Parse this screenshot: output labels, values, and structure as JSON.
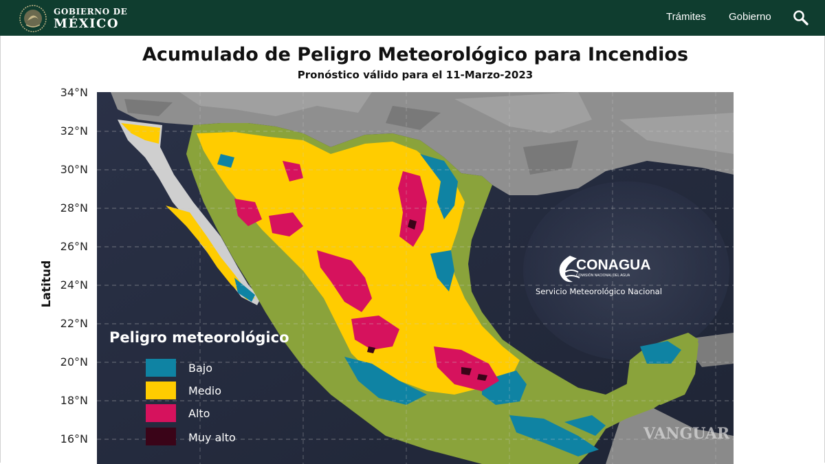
{
  "header": {
    "brand_line1": "GOBIERNO DE",
    "brand_line2": "MÉXICO",
    "nav": [
      "Trámites",
      "Gobierno"
    ],
    "search_icon": "search-icon"
  },
  "map": {
    "title": "Acumulado de Peligro Meteorológico para Incendios",
    "subtitle": "Pronóstico válido para el 11-Marzo-2023",
    "ylabel": "Latitud",
    "lat_ticks": [
      "34°N",
      "32°N",
      "30°N",
      "28°N",
      "26°N",
      "24°N",
      "22°N",
      "20°N",
      "18°N",
      "16°N"
    ],
    "legend": {
      "title": "Peligro meteorológico",
      "items": [
        {
          "label": "Bajo",
          "color": "#0f83a3"
        },
        {
          "label": "Medio",
          "color": "#ffcc00"
        },
        {
          "label": "Alto",
          "color": "#d6125d"
        },
        {
          "label": "Muy alto",
          "color": "#3a0418"
        }
      ]
    },
    "agency": {
      "name": "CONAGUA",
      "tagline": "COMISIÓN NACIONAL DEL AGUA",
      "service": "Servicio Meteorológico Nacional"
    },
    "watermark": "VANGUAR"
  }
}
